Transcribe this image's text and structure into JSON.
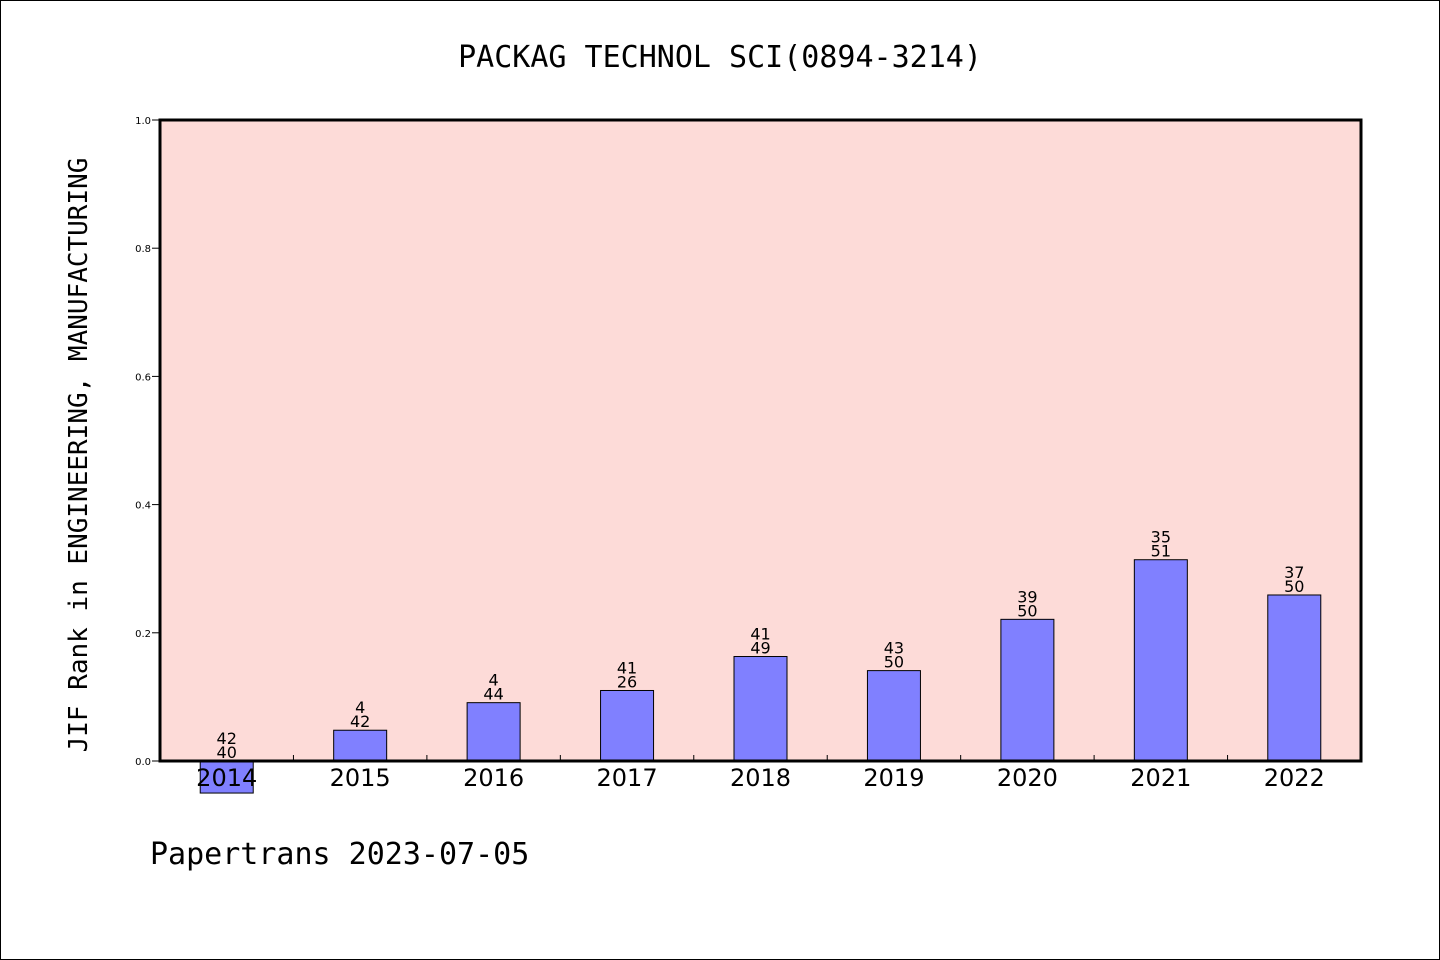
{
  "chart_data": {
    "type": "bar",
    "title": "PACKAG TECHNOL SCI(0894-3214)",
    "ylabel": "JIF Rank in ENGINEERING, MANUFACTURING",
    "xlabel": "",
    "ylim": [
      0.0,
      1.0
    ],
    "yticks": [
      "0.0",
      "0.2",
      "0.4",
      "0.6",
      "0.8",
      "1.0"
    ],
    "categories": [
      "2014",
      "2015",
      "2016",
      "2017",
      "2018",
      "2019",
      "2020",
      "2021",
      "2022"
    ],
    "values": [
      -0.05,
      0.048,
      0.091,
      0.11,
      0.163,
      0.141,
      0.221,
      0.314,
      0.259
    ],
    "labels_top": [
      "42",
      "4",
      "4",
      "41",
      "41",
      "43",
      "39",
      "35",
      "37"
    ],
    "labels_bottom": [
      "40",
      "42",
      "44",
      "26",
      "49",
      "50",
      "50",
      "51",
      "50"
    ],
    "colors": {
      "plot_background": "#fddbd8",
      "bar_fill": "#8080ff",
      "bar_stroke": "#000000"
    },
    "grid": false,
    "legend": "none"
  },
  "footer": {
    "text": "Papertrans 2023-07-05"
  }
}
